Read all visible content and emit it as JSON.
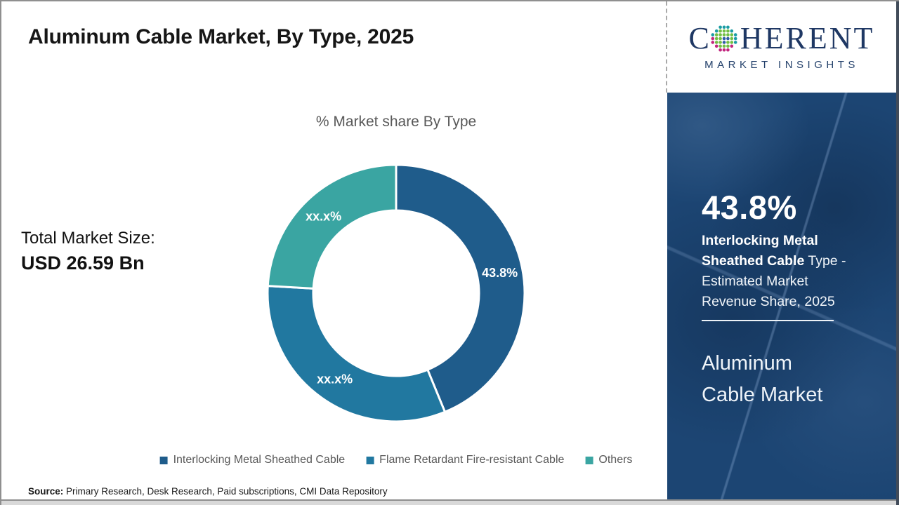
{
  "title": "Aluminum Cable Market, By Type, 2025",
  "stats": {
    "label": "Total Market Size:",
    "value": "USD 26.59 Bn"
  },
  "chart_data": {
    "type": "pie",
    "variant": "donut",
    "title": "% Market share By Type",
    "unit": "%",
    "categories": [
      "Interlocking Metal Sheathed Cable",
      "Flame Retardant Fire-resistant Cable",
      "Others"
    ],
    "segments": [
      {
        "label": "Interlocking Metal Sheathed Cable",
        "value_label": "43.8%",
        "value": 43.8,
        "color": "#1f5c8b"
      },
      {
        "label": "Flame Retardant Fire-resistant Cable",
        "value_label": "xx.x%",
        "value": 32.1,
        "color": "#2178a0"
      },
      {
        "label": "Others",
        "value_label": "xx.x%",
        "value": 24.1,
        "color": "#3aa5a2"
      }
    ],
    "start_angle_deg": 0,
    "direction": "clockwise",
    "inner_radius_ratio": 0.645,
    "legend_position": "bottom"
  },
  "source": {
    "label": "Source:",
    "text": " Primary Research, Desk Research, Paid subscriptions, CMI Data Repository"
  },
  "sidebar": {
    "logo": {
      "first_letter": "C",
      "rest": "HERENT",
      "tagline": "MARKET INSIGHTS"
    },
    "stat_value": "43.8%",
    "stat_bold": "Interlocking Metal Sheathed Cable",
    "stat_rest": " Type - Estimated Market Revenue Share, 2025",
    "market_name": "Aluminum Cable Market"
  },
  "colors": {
    "panel": "#1c4573",
    "subtitle_text": "#595959",
    "legend_text": "#595959",
    "logo_navy": "#1f3864"
  }
}
